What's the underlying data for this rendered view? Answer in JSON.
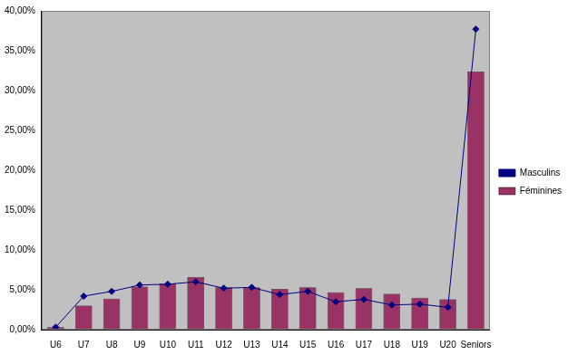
{
  "chart_data": {
    "type": "bar",
    "categories": [
      "U6",
      "U7",
      "U8",
      "U9",
      "U10",
      "U11",
      "U12",
      "U13",
      "U14",
      "U15",
      "U16",
      "U17",
      "U18",
      "U19",
      "U20",
      "Seniors"
    ],
    "series": [
      {
        "name": "Féminines",
        "type": "bar",
        "color": "#993366",
        "values": [
          0.3,
          3.0,
          3.9,
          5.4,
          5.8,
          6.6,
          5.3,
          5.3,
          5.1,
          5.3,
          4.7,
          5.2,
          4.5,
          4.0,
          3.8,
          32.4
        ]
      },
      {
        "name": "Masculins",
        "type": "line",
        "color": "#000080",
        "marker": "diamond",
        "line_style": "solid",
        "values": [
          0.3,
          4.2,
          4.8,
          5.6,
          5.7,
          6.0,
          5.2,
          5.3,
          4.4,
          4.8,
          3.5,
          3.8,
          3.1,
          3.2,
          2.8,
          37.7
        ]
      }
    ],
    "ylim": [
      0,
      40
    ],
    "yticks": [
      {
        "value": 0,
        "label": "0,00%"
      },
      {
        "value": 5,
        "label": "5,00%"
      },
      {
        "value": 10,
        "label": "10,00%"
      },
      {
        "value": 15,
        "label": "15,00%"
      },
      {
        "value": 20,
        "label": "20,00%"
      },
      {
        "value": 25,
        "label": "25,00%"
      },
      {
        "value": 30,
        "label": "30,00%"
      },
      {
        "value": 35,
        "label": "35,00%"
      },
      {
        "value": 40,
        "label": "40,00%"
      }
    ],
    "grid": false,
    "legend": "right"
  }
}
